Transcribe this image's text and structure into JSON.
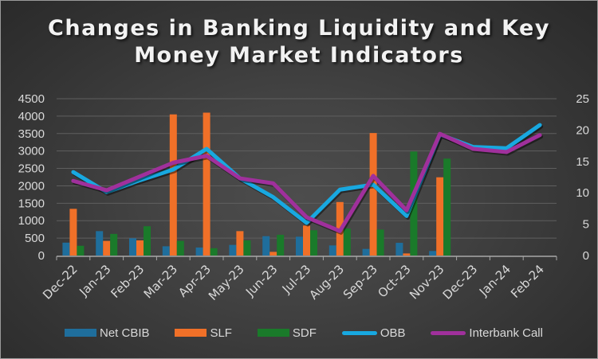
{
  "chart_data": {
    "type": "bar+line",
    "title": "Changes in Banking Liquidity and Key Money Market Indicators",
    "title_lines": [
      "Changes in Banking Liquidity and Key",
      "Money Market Indicators"
    ],
    "categories": [
      "Dec-22",
      "Jan-23",
      "Feb-23",
      "Mar-23",
      "Apr-23",
      "May-23",
      "Jun-23",
      "Jul-23",
      "Aug-23",
      "Sep-23",
      "Oct-23",
      "Nov-23",
      "Dec-23",
      "Jan-24",
      "Feb-24"
    ],
    "left_axis": {
      "min": 0,
      "max": 4500,
      "step": 500,
      "ticks": [
        "0",
        "500",
        "1000",
        "1500",
        "2000",
        "2500",
        "3000",
        "3500",
        "4000",
        "4500"
      ]
    },
    "right_axis": {
      "min": 0,
      "max": 25,
      "step": 5,
      "ticks": [
        "0",
        "5",
        "10",
        "15",
        "20",
        "25"
      ]
    },
    "series": [
      {
        "name": "Net CBIB",
        "kind": "bar",
        "axis": "left",
        "color": "#1f6e9c",
        "values": [
          370,
          700,
          495,
          265,
          230,
          305,
          555,
          540,
          290,
          190,
          365,
          130,
          null,
          null,
          null
        ]
      },
      {
        "name": "SLF",
        "kind": "bar",
        "axis": "left",
        "color": "#f07028",
        "values": [
          1340,
          420,
          435,
          4050,
          4100,
          700,
          105,
          860,
          1535,
          3515,
          60,
          2245,
          null,
          null,
          null
        ]
      },
      {
        "name": "SDF",
        "kind": "bar",
        "axis": "left",
        "color": "#1a7a2a",
        "values": [
          280,
          620,
          840,
          420,
          210,
          435,
          595,
          725,
          775,
          745,
          2985,
          2780,
          null,
          null,
          null
        ]
      },
      {
        "name": "OBB",
        "kind": "line",
        "axis": "right",
        "color": "#18a8e0",
        "values": [
          13.3,
          10.1,
          12.0,
          13.7,
          17.0,
          12.3,
          9.3,
          5.2,
          10.5,
          11.3,
          6.3,
          19.3,
          17.3,
          17.1,
          20.8
        ]
      },
      {
        "name": "Interbank Call",
        "kind": "line",
        "axis": "right",
        "color": "#a0309c",
        "values": [
          11.9,
          10.4,
          12.6,
          14.8,
          15.9,
          12.3,
          11.5,
          6.1,
          3.9,
          12.7,
          7.2,
          19.4,
          17.0,
          16.5,
          19.2
        ]
      }
    ],
    "xlabel": "",
    "ylabel": "",
    "y2label": "",
    "grid": true,
    "legend_position": "bottom"
  },
  "legend": {
    "items": [
      {
        "label": "Net CBIB",
        "type": "bar",
        "color": "#1f6e9c"
      },
      {
        "label": "SLF",
        "type": "bar",
        "color": "#f07028"
      },
      {
        "label": "SDF",
        "type": "bar",
        "color": "#1a7a2a"
      },
      {
        "label": "OBB",
        "type": "line",
        "color": "#18a8e0"
      },
      {
        "label": "Interbank Call",
        "type": "line",
        "color": "#a0309c"
      }
    ]
  }
}
